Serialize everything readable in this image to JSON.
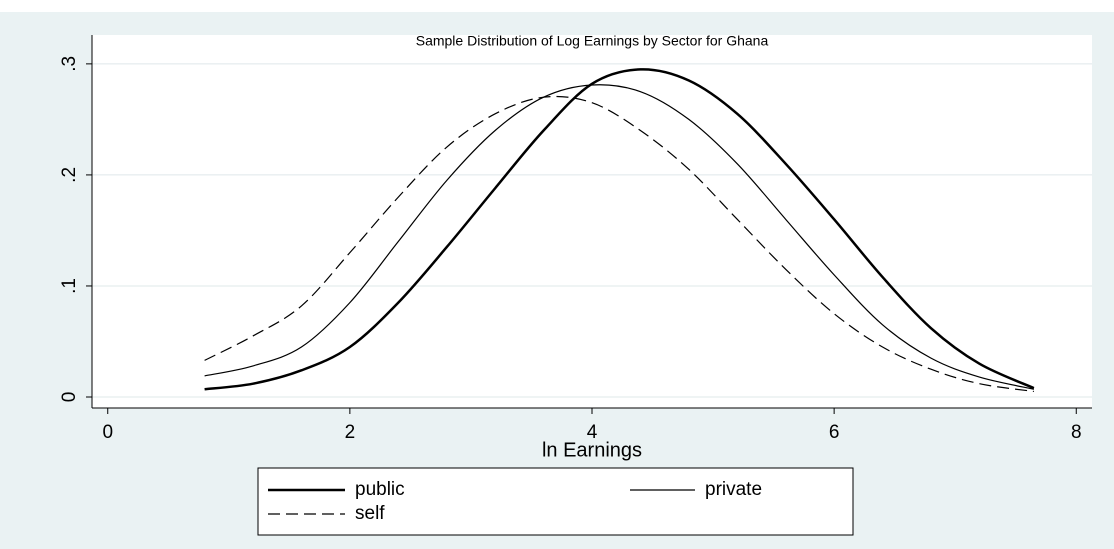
{
  "chart_data": {
    "type": "line",
    "title": "Sample Distribution of Log Earnings by Sector for Ghana",
    "x_label": "ln Earnings",
    "x": [
      0.8,
      1.2,
      1.6,
      2.0,
      2.4,
      2.8,
      3.2,
      3.6,
      4.0,
      4.4,
      4.8,
      5.2,
      5.6,
      6.0,
      6.4,
      6.8,
      7.2,
      7.65
    ],
    "series": [
      {
        "name": "public",
        "color": "#000000",
        "width": 2.5,
        "dashed": false,
        "values": [
          0.007,
          0.012,
          0.024,
          0.045,
          0.085,
          0.135,
          0.188,
          0.24,
          0.282,
          0.295,
          0.285,
          0.255,
          0.21,
          0.16,
          0.108,
          0.062,
          0.03,
          0.008
        ]
      },
      {
        "name": "private",
        "color": "#000000",
        "width": 1.2,
        "dashed": false,
        "values": [
          0.019,
          0.028,
          0.045,
          0.085,
          0.14,
          0.195,
          0.24,
          0.27,
          0.281,
          0.275,
          0.25,
          0.21,
          0.16,
          0.11,
          0.065,
          0.035,
          0.018,
          0.007
        ]
      },
      {
        "name": "self",
        "color": "#000000",
        "width": 1.2,
        "dashed": true,
        "values": [
          0.033,
          0.055,
          0.082,
          0.13,
          0.18,
          0.225,
          0.255,
          0.27,
          0.265,
          0.24,
          0.205,
          0.16,
          0.115,
          0.075,
          0.045,
          0.025,
          0.012,
          0.005
        ]
      }
    ],
    "xlim": [
      -0.13,
      8.13
    ],
    "xticks": [
      0,
      2,
      4,
      6,
      8
    ],
    "ylim": [
      -0.0099,
      0.326
    ],
    "yticks": [
      0,
      {
        "value": 0.1,
        "label": ".1"
      },
      {
        "value": 0.2,
        "label": ".2"
      },
      {
        "value": 0.3,
        "label": ".3"
      }
    ],
    "grid": true
  }
}
